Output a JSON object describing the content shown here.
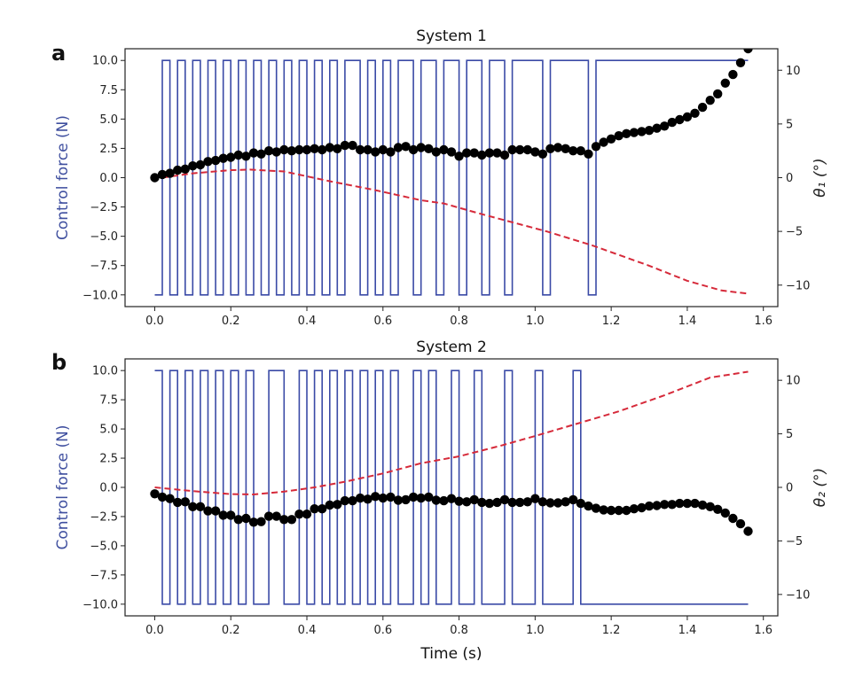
{
  "colors": {
    "control_force": "#3a4aa6",
    "left_axis_label": "#3f4f9f",
    "dots": "#000000",
    "dashed": "#d62a3a",
    "axes": "#222222"
  },
  "chart_data": [
    {
      "type": "line",
      "panel_label": "a",
      "title": "System 1",
      "xlabel": "",
      "ylabel_left": "Control force (N)",
      "ylabel_right": "θ₁ (°)",
      "xlim": [
        -0.078,
        1.638
      ],
      "ylim_left": [
        -11,
        11
      ],
      "ylim_right": [
        -12,
        12
      ],
      "x_ticks": [
        0.0,
        0.2,
        0.4,
        0.6,
        0.8,
        1.0,
        1.2,
        1.4,
        1.6
      ],
      "x_tick_labels": [
        "0.0",
        "0.2",
        "0.4",
        "0.6",
        "0.8",
        "1.0",
        "1.2",
        "1.4",
        "1.6"
      ],
      "y_left_ticks": [
        10,
        7.5,
        5,
        2.5,
        0,
        -2.5,
        -5,
        -7.5,
        -10
      ],
      "y_left_tick_labels": [
        "10.0",
        "7.5",
        "5.0",
        "2.5",
        "0.0",
        "−2.5",
        "−5.0",
        "−7.5",
        "−10.0"
      ],
      "y_right_ticks": [
        10,
        5,
        0,
        -5,
        -10
      ],
      "y_right_tick_labels": [
        "10",
        "5",
        "0",
        "−5",
        "−10"
      ],
      "grid": false,
      "control_force": {
        "axis": "left",
        "style": "step",
        "t_start": 0,
        "t_end": 1.56,
        "high": 10,
        "low": -10,
        "high_intervals": [
          [
            0.02,
            0.04
          ],
          [
            0.06,
            0.08
          ],
          [
            0.1,
            0.12
          ],
          [
            0.14,
            0.16
          ],
          [
            0.18,
            0.2
          ],
          [
            0.22,
            0.24
          ],
          [
            0.26,
            0.28
          ],
          [
            0.3,
            0.32
          ],
          [
            0.34,
            0.36
          ],
          [
            0.38,
            0.4
          ],
          [
            0.42,
            0.44
          ],
          [
            0.46,
            0.48
          ],
          [
            0.5,
            0.54
          ],
          [
            0.56,
            0.58
          ],
          [
            0.6,
            0.62
          ],
          [
            0.64,
            0.68
          ],
          [
            0.7,
            0.74
          ],
          [
            0.76,
            0.8
          ],
          [
            0.82,
            0.86
          ],
          [
            0.88,
            0.92
          ],
          [
            0.94,
            1.02
          ],
          [
            1.04,
            1.14
          ],
          [
            1.16,
            1.56
          ]
        ]
      },
      "theta_points": {
        "axis": "right",
        "style": "markers",
        "x": [
          0,
          0.02,
          0.04,
          0.06,
          0.08,
          0.1,
          0.12,
          0.14,
          0.16,
          0.18,
          0.2,
          0.22,
          0.24,
          0.26,
          0.28,
          0.3,
          0.32,
          0.34,
          0.36,
          0.38,
          0.4,
          0.42,
          0.44,
          0.46,
          0.48,
          0.5,
          0.52,
          0.54,
          0.56,
          0.58,
          0.6,
          0.62,
          0.64,
          0.66,
          0.68,
          0.7,
          0.72,
          0.74,
          0.76,
          0.78,
          0.8,
          0.82,
          0.84,
          0.86,
          0.88,
          0.9,
          0.92,
          0.94,
          0.96,
          0.98,
          1.0,
          1.02,
          1.04,
          1.06,
          1.08,
          1.1,
          1.12,
          1.14,
          1.16,
          1.18,
          1.2,
          1.22,
          1.24,
          1.26,
          1.28,
          1.3,
          1.32,
          1.34,
          1.36,
          1.38,
          1.4,
          1.42,
          1.44,
          1.46,
          1.48,
          1.5,
          1.52,
          1.54,
          1.56
        ],
        "y": [
          0,
          0.3,
          0.4,
          0.7,
          0.8,
          1.1,
          1.2,
          1.5,
          1.6,
          1.8,
          1.9,
          2.1,
          2.0,
          2.3,
          2.2,
          2.5,
          2.4,
          2.6,
          2.5,
          2.6,
          2.6,
          2.7,
          2.6,
          2.8,
          2.7,
          3.0,
          3.0,
          2.6,
          2.6,
          2.4,
          2.6,
          2.4,
          2.8,
          2.9,
          2.6,
          2.8,
          2.7,
          2.4,
          2.6,
          2.4,
          2.0,
          2.3,
          2.3,
          2.1,
          2.3,
          2.3,
          2.1,
          2.6,
          2.6,
          2.6,
          2.4,
          2.2,
          2.7,
          2.8,
          2.7,
          2.5,
          2.5,
          2.2,
          2.9,
          3.3,
          3.6,
          3.9,
          4.1,
          4.2,
          4.3,
          4.4,
          4.6,
          4.8,
          5.15,
          5.4,
          5.65,
          6.0,
          6.55,
          7.2,
          7.8,
          8.8,
          9.6,
          10.7,
          12.0
        ]
      },
      "dashed_line": {
        "axis": "right",
        "style": "dashed",
        "x": [
          0.02,
          0.1,
          0.2,
          0.25,
          0.34,
          0.46,
          0.58,
          0.7,
          0.76,
          0.86,
          1.03,
          1.15,
          1.3,
          1.4,
          1.49,
          1.56
        ],
        "y": [
          0,
          0.4,
          0.7,
          0.75,
          0.58,
          -0.33,
          -1.16,
          -2.1,
          -2.4,
          -3.4,
          -5.0,
          -6.3,
          -8.2,
          -9.6,
          -10.5,
          -10.8
        ]
      }
    },
    {
      "type": "line",
      "panel_label": "b",
      "title": "System 2",
      "xlabel": "Time (s)",
      "ylabel_left": "Control force (N)",
      "ylabel_right": "θ₂ (°)",
      "xlim": [
        -0.078,
        1.638
      ],
      "ylim_left": [
        -11,
        11
      ],
      "ylim_right": [
        -12,
        12
      ],
      "x_ticks": [
        0.0,
        0.2,
        0.4,
        0.6,
        0.8,
        1.0,
        1.2,
        1.4,
        1.6
      ],
      "x_tick_labels": [
        "0.0",
        "0.2",
        "0.4",
        "0.6",
        "0.8",
        "1.0",
        "1.2",
        "1.4",
        "1.6"
      ],
      "y_left_ticks": [
        10,
        7.5,
        5,
        2.5,
        0,
        -2.5,
        -5,
        -7.5,
        -10
      ],
      "y_left_tick_labels": [
        "10.0",
        "7.5",
        "5.0",
        "2.5",
        "0.0",
        "−2.5",
        "−5.0",
        "−7.5",
        "−10.0"
      ],
      "y_right_ticks": [
        10,
        5,
        0,
        -5,
        -10
      ],
      "y_right_tick_labels": [
        "10",
        "5",
        "0",
        "−5",
        "−10"
      ],
      "grid": false,
      "control_force": {
        "axis": "left",
        "style": "step",
        "t_start": 0,
        "t_end": 1.56,
        "high": 10,
        "low": -10,
        "high_intervals": [
          [
            0,
            0.02
          ],
          [
            0.04,
            0.06
          ],
          [
            0.08,
            0.1
          ],
          [
            0.12,
            0.14
          ],
          [
            0.16,
            0.18
          ],
          [
            0.2,
            0.22
          ],
          [
            0.24,
            0.26
          ],
          [
            0.3,
            0.34
          ],
          [
            0.38,
            0.4
          ],
          [
            0.42,
            0.44
          ],
          [
            0.46,
            0.48
          ],
          [
            0.5,
            0.52
          ],
          [
            0.54,
            0.56
          ],
          [
            0.58,
            0.6
          ],
          [
            0.62,
            0.64
          ],
          [
            0.68,
            0.7
          ],
          [
            0.72,
            0.74
          ],
          [
            0.78,
            0.8
          ],
          [
            0.84,
            0.86
          ],
          [
            0.92,
            0.94
          ],
          [
            1.0,
            1.02
          ],
          [
            1.1,
            1.12
          ]
        ]
      },
      "theta_points": {
        "axis": "right",
        "style": "markers",
        "x": [
          0,
          0.02,
          0.04,
          0.06,
          0.08,
          0.1,
          0.12,
          0.14,
          0.16,
          0.18,
          0.2,
          0.22,
          0.24,
          0.26,
          0.28,
          0.3,
          0.32,
          0.34,
          0.36,
          0.38,
          0.4,
          0.42,
          0.44,
          0.46,
          0.48,
          0.5,
          0.52,
          0.54,
          0.56,
          0.58,
          0.6,
          0.62,
          0.64,
          0.66,
          0.68,
          0.7,
          0.72,
          0.74,
          0.76,
          0.78,
          0.8,
          0.82,
          0.84,
          0.86,
          0.88,
          0.9,
          0.92,
          0.94,
          0.96,
          0.98,
          1.0,
          1.02,
          1.04,
          1.06,
          1.08,
          1.1,
          1.12,
          1.14,
          1.16,
          1.18,
          1.2,
          1.22,
          1.24,
          1.26,
          1.28,
          1.3,
          1.32,
          1.34,
          1.36,
          1.38,
          1.4,
          1.42,
          1.44,
          1.46,
          1.48,
          1.5,
          1.52,
          1.54,
          1.56
        ],
        "y": [
          -0.6,
          -0.9,
          -1.05,
          -1.4,
          -1.35,
          -1.8,
          -1.8,
          -2.2,
          -2.2,
          -2.6,
          -2.6,
          -3.0,
          -2.9,
          -3.25,
          -3.2,
          -2.7,
          -2.7,
          -3.0,
          -3.0,
          -2.5,
          -2.5,
          -2.0,
          -2.0,
          -1.65,
          -1.6,
          -1.25,
          -1.25,
          -1.0,
          -1.1,
          -0.85,
          -1.0,
          -0.9,
          -1.2,
          -1.15,
          -0.9,
          -1.0,
          -0.9,
          -1.2,
          -1.25,
          -1.05,
          -1.3,
          -1.35,
          -1.15,
          -1.4,
          -1.5,
          -1.4,
          -1.15,
          -1.4,
          -1.4,
          -1.35,
          -1.05,
          -1.35,
          -1.45,
          -1.45,
          -1.35,
          -1.15,
          -1.5,
          -1.75,
          -1.95,
          -2.1,
          -2.15,
          -2.15,
          -2.15,
          -2.0,
          -1.9,
          -1.75,
          -1.7,
          -1.6,
          -1.6,
          -1.5,
          -1.5,
          -1.5,
          -1.65,
          -1.8,
          -2.05,
          -2.4,
          -2.9,
          -3.4,
          -4.1
        ]
      },
      "dashed_line": {
        "axis": "right",
        "style": "dashed",
        "x": [
          0,
          0.1,
          0.2,
          0.26,
          0.34,
          0.42,
          0.5,
          0.6,
          0.7,
          0.8,
          0.91,
          1.0,
          1.12,
          1.22,
          1.34,
          1.46,
          1.56
        ],
        "y": [
          0,
          -0.35,
          -0.63,
          -0.66,
          -0.4,
          0,
          0.53,
          1.3,
          2.25,
          2.9,
          3.9,
          4.8,
          6.05,
          7.1,
          8.6,
          10.25,
          10.8
        ]
      }
    }
  ]
}
